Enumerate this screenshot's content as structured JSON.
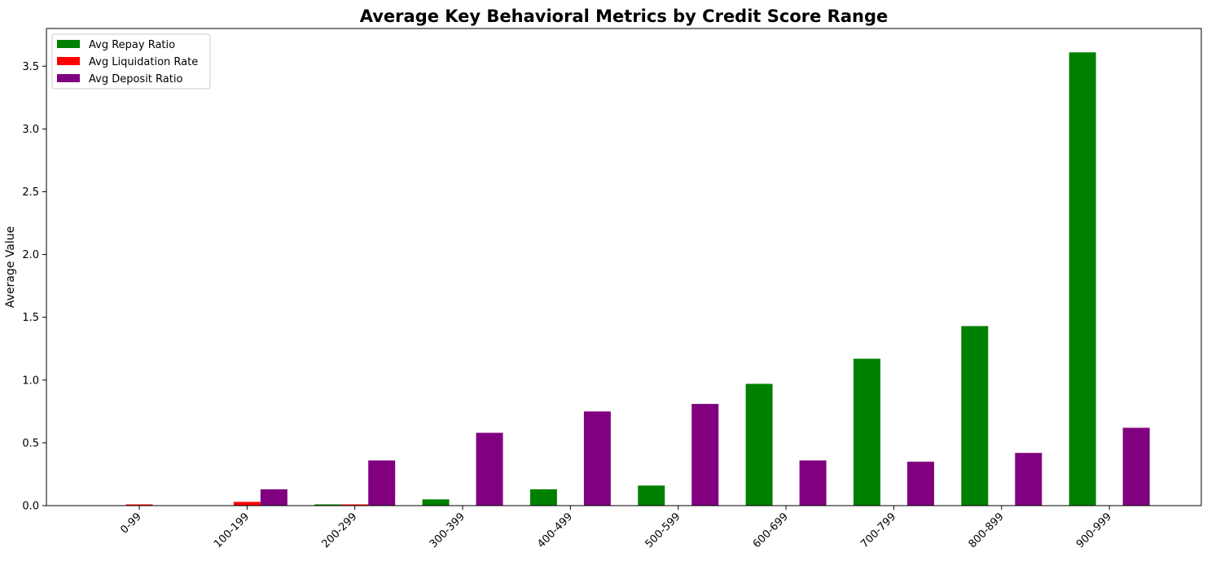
{
  "chart_data": {
    "type": "bar",
    "title": "Average Key Behavioral Metrics by Credit Score Range",
    "xlabel": "",
    "ylabel": "Average Value",
    "ylim": [
      0,
      3.8
    ],
    "yticks": [
      "0.0",
      "0.5",
      "1.0",
      "1.5",
      "2.0",
      "2.5",
      "3.0",
      "3.5"
    ],
    "categories": [
      "0-99",
      "100-199",
      "200-299",
      "300-399",
      "400-499",
      "500-599",
      "600-699",
      "700-799",
      "800-899",
      "900-999"
    ],
    "legend_position": "top-left",
    "grid": false,
    "series": [
      {
        "name": "Avg Repay Ratio",
        "color": "#008000",
        "values": [
          0.0,
          0.0,
          0.01,
          0.05,
          0.13,
          0.16,
          0.97,
          1.17,
          1.43,
          3.61
        ]
      },
      {
        "name": "Avg Liquidation Rate",
        "color": "#ff0000",
        "values": [
          0.01,
          0.03,
          0.01,
          0.0,
          0.0,
          0.0,
          0.0,
          0.0,
          0.0,
          0.0
        ]
      },
      {
        "name": "Avg Deposit Ratio",
        "color": "#800080",
        "values": [
          0.0,
          0.13,
          0.36,
          0.58,
          0.75,
          0.81,
          0.36,
          0.35,
          0.42,
          0.62
        ]
      }
    ]
  }
}
